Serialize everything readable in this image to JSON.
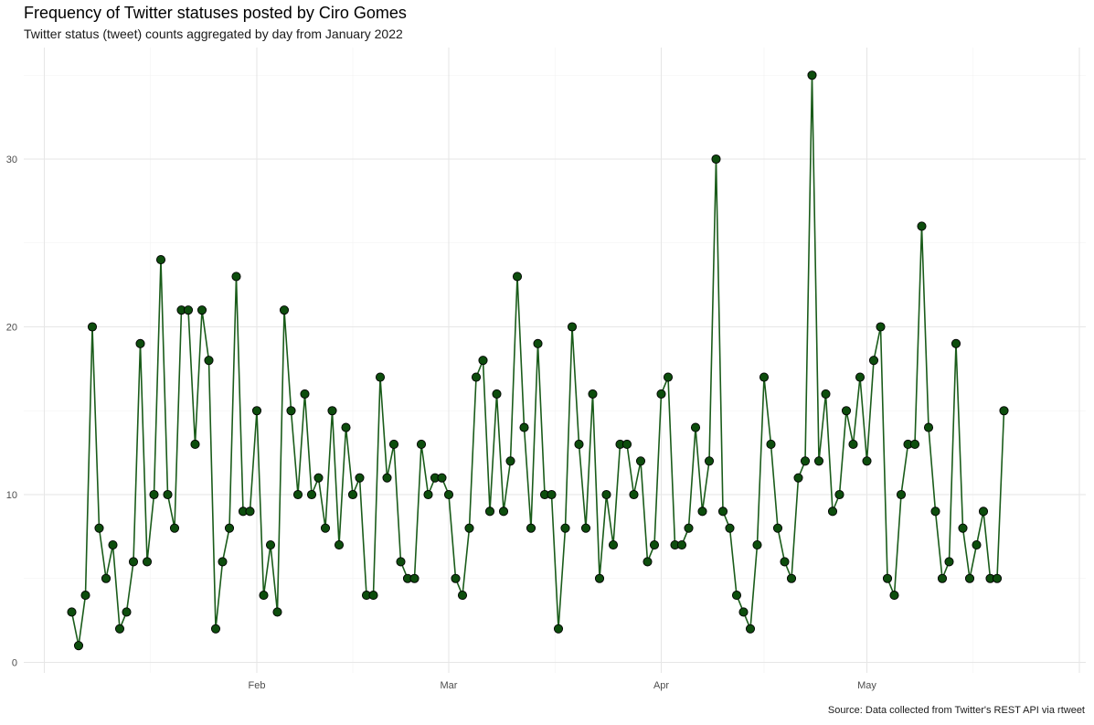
{
  "title": "Frequency of Twitter statuses posted by Ciro Gomes",
  "subtitle": "Twitter status (tweet) counts aggregated by day from January 2022",
  "caption": "Source: Data collected from Twitter's REST API via rtweet",
  "chart_data": {
    "type": "line",
    "title": "Frequency of Twitter statuses posted by Ciro Gomes",
    "subtitle": "Twitter status (tweet) counts aggregated by day from January 2022",
    "xlabel": "",
    "ylabel": "",
    "x_range": [
      "2022-01-01",
      "2022-05-31"
    ],
    "ylim": [
      0,
      36
    ],
    "y_ticks": [
      0,
      10,
      20,
      30
    ],
    "x_ticks": [
      {
        "date": "2022-02-01",
        "label": "Feb"
      },
      {
        "date": "2022-03-01",
        "label": "Mar"
      },
      {
        "date": "2022-04-01",
        "label": "Apr"
      },
      {
        "date": "2022-05-01",
        "label": "May"
      }
    ],
    "grid": true,
    "line_color": "#1a5c1a",
    "point_color": "#0d4d0d",
    "series": [
      {
        "start_date": "2022-01-05",
        "values": [
          3,
          1,
          4,
          20,
          8,
          5,
          7,
          2,
          3,
          6,
          19,
          6,
          10,
          24,
          10,
          8,
          21,
          21,
          13,
          21,
          18,
          2,
          6,
          8,
          23,
          9,
          9,
          15,
          4,
          7,
          3,
          21,
          15,
          10,
          16,
          10,
          11,
          8,
          15,
          7,
          14,
          10,
          11,
          4,
          4,
          17,
          11,
          13,
          6,
          5,
          5,
          13,
          10,
          11,
          11,
          10,
          5,
          4,
          8,
          17,
          18,
          9,
          16,
          9,
          12,
          23,
          14,
          8,
          19,
          10,
          10,
          2,
          8,
          20,
          13,
          8,
          16,
          5,
          10,
          7,
          13,
          13,
          10,
          12,
          6,
          7,
          16,
          17,
          7,
          7,
          8,
          14,
          9,
          12,
          30,
          9,
          8,
          4,
          3,
          2,
          7,
          17,
          13,
          8,
          6,
          5,
          11,
          12,
          35,
          12,
          16,
          9,
          10,
          15,
          13,
          17,
          12,
          18,
          20,
          5,
          4,
          10,
          13,
          13,
          26,
          14,
          9,
          5,
          6,
          19,
          8,
          5,
          7,
          9,
          5,
          5,
          15
        ]
      }
    ]
  }
}
